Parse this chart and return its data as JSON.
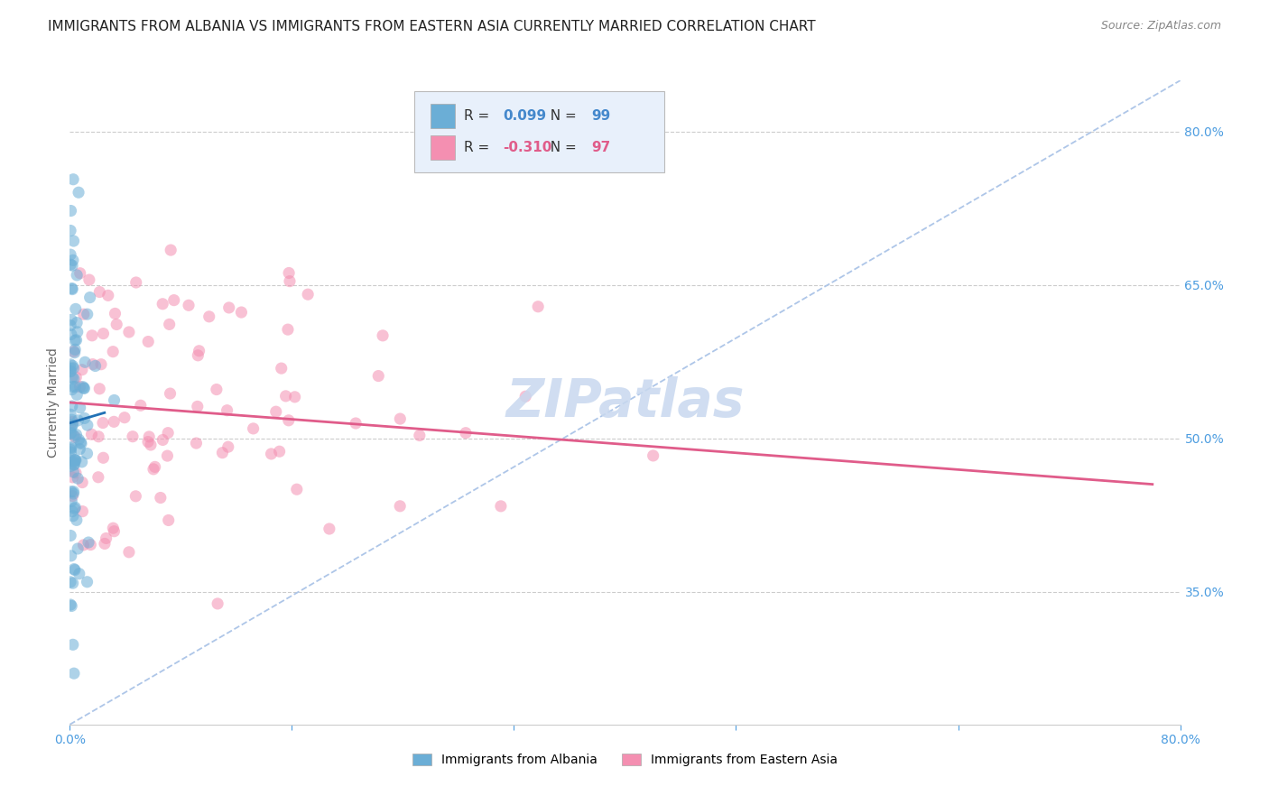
{
  "title": "IMMIGRANTS FROM ALBANIA VS IMMIGRANTS FROM EASTERN ASIA CURRENTLY MARRIED CORRELATION CHART",
  "source_text": "Source: ZipAtlas.com",
  "ylabel": "Currently Married",
  "ytick_labels": [
    "80.0%",
    "65.0%",
    "50.0%",
    "35.0%"
  ],
  "ytick_values": [
    0.8,
    0.65,
    0.5,
    0.35
  ],
  "xlim": [
    0.0,
    0.8
  ],
  "ylim": [
    0.22,
    0.85
  ],
  "albania_R": 0.099,
  "albania_N": 99,
  "eastern_asia_R": -0.31,
  "eastern_asia_N": 97,
  "albania_color": "#6baed6",
  "eastern_asia_color": "#f48fb1",
  "albania_trend_color": "#2171b5",
  "eastern_asia_trend_color": "#e05c8a",
  "diagonal_line_color": "#aec6e8",
  "watermark_color": "#c8d8ef",
  "legend_box_color": "#e8f0fb",
  "title_fontsize": 11,
  "label_fontsize": 10,
  "tick_fontsize": 10,
  "watermark_fontsize": 42,
  "background_color": "#ffffff",
  "grid_color": "#cccccc",
  "right_tick_color": "#4d9de0",
  "bottom_tick_color": "#4d9de0",
  "albania_trend_x0": 0.0,
  "albania_trend_x1": 0.025,
  "albania_trend_y0": 0.515,
  "albania_trend_y1": 0.525,
  "eastern_asia_trend_x0": 0.0,
  "eastern_asia_trend_x1": 0.78,
  "eastern_asia_trend_y0": 0.535,
  "eastern_asia_trend_y1": 0.455
}
